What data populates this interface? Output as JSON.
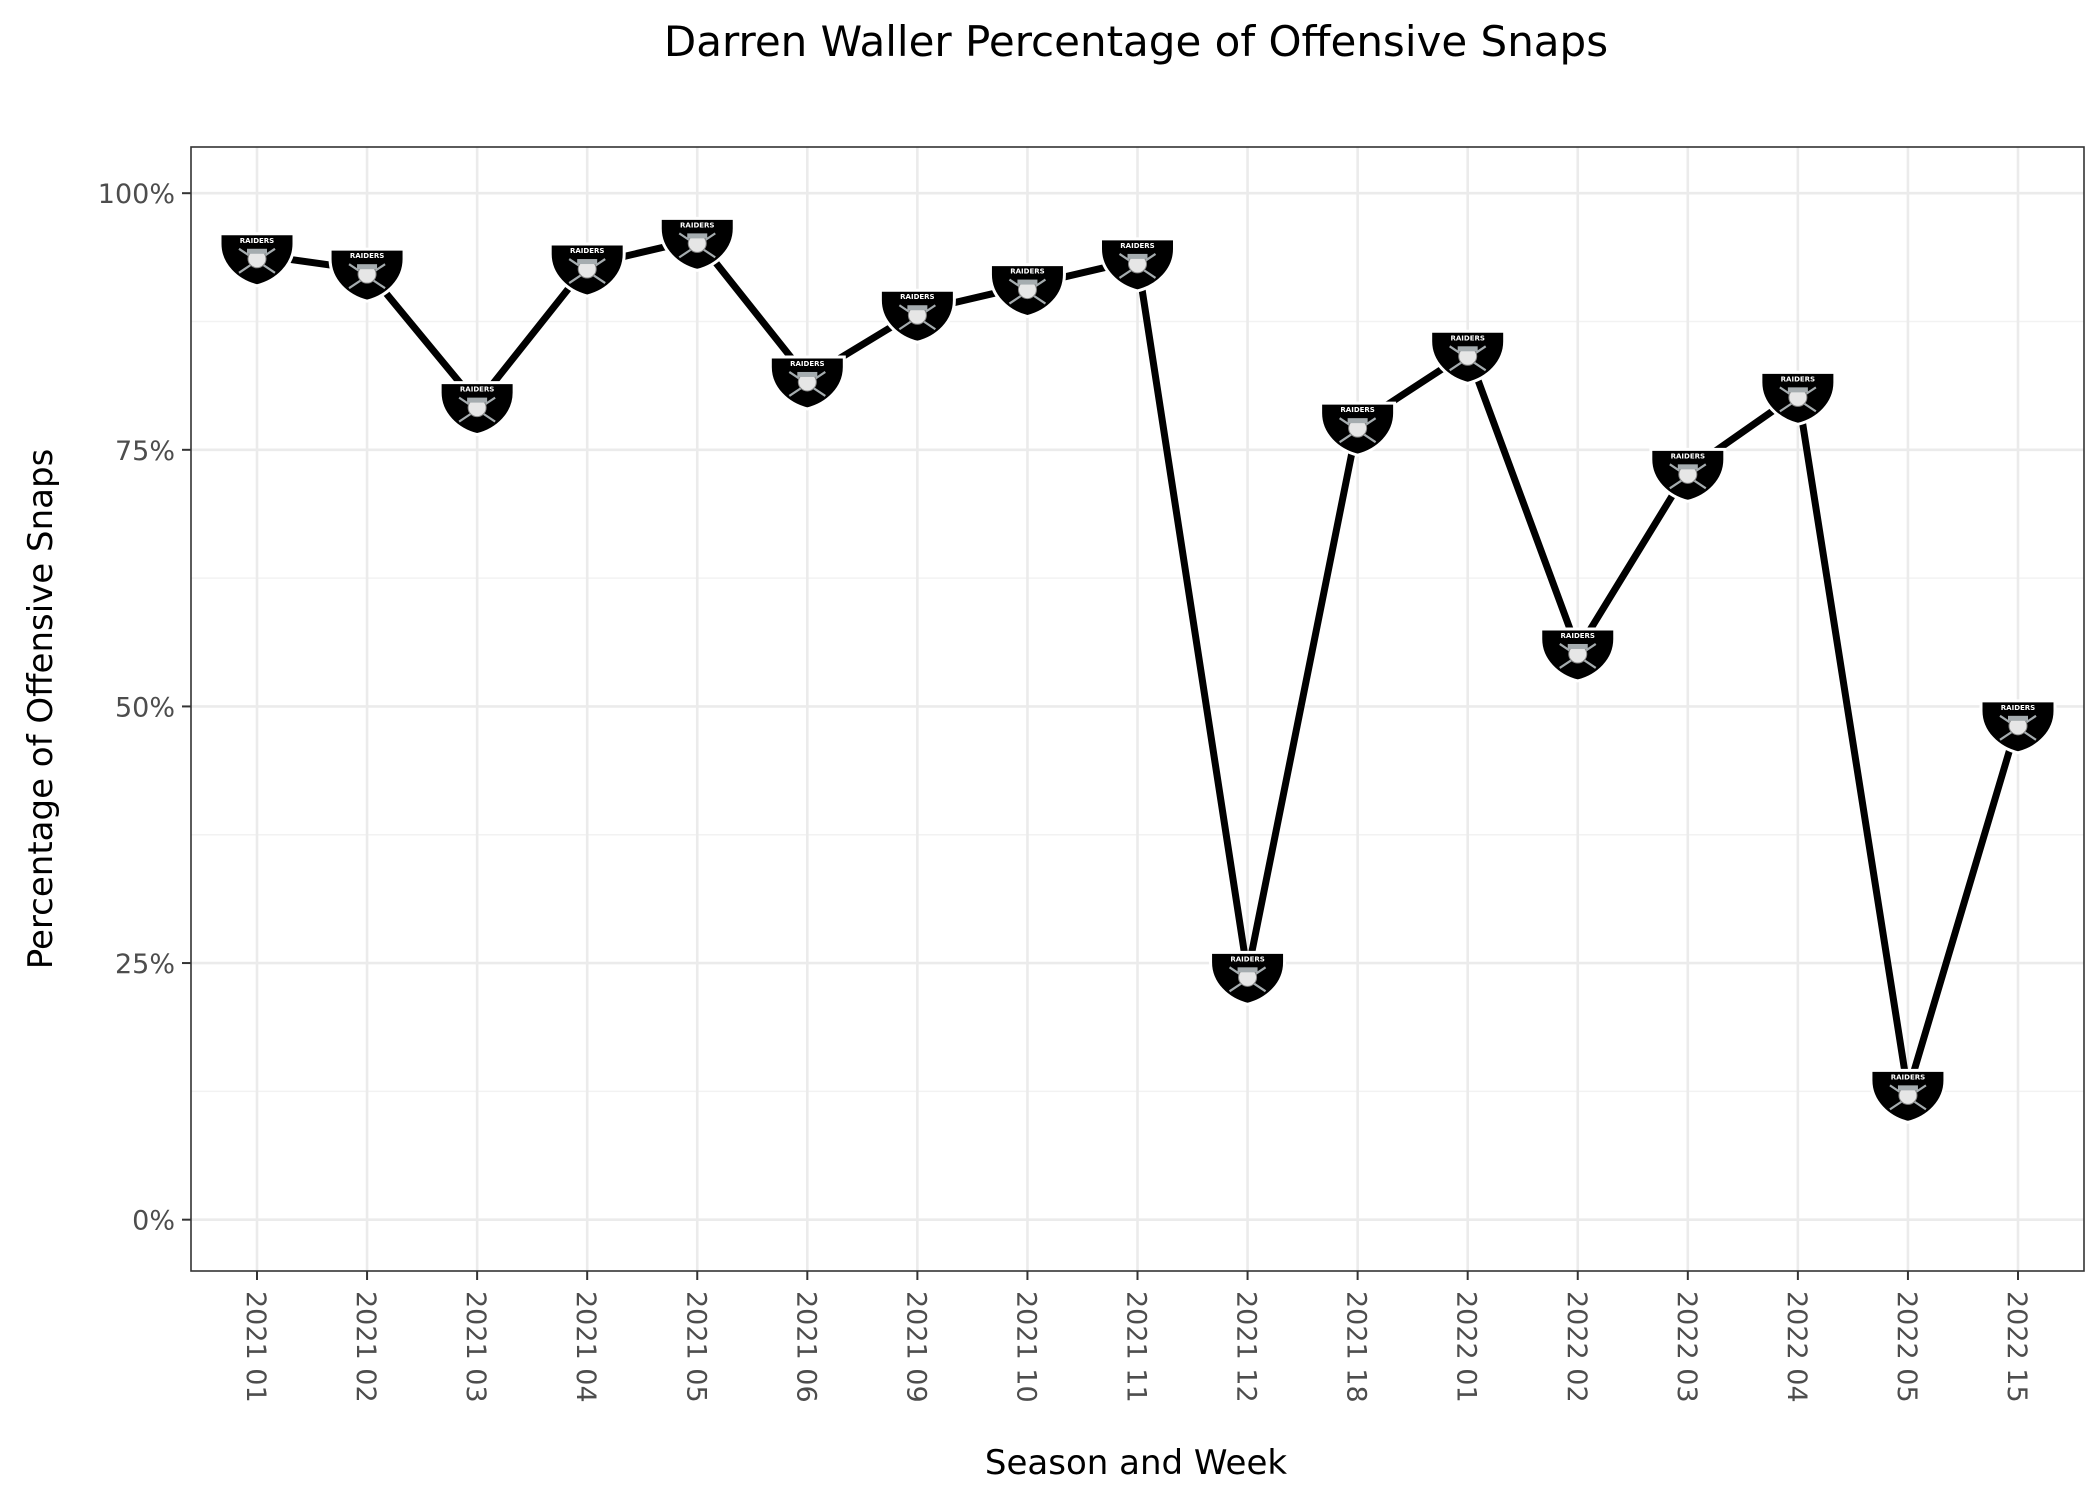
{
  "chart_data": {
    "type": "line",
    "title": "Darren Waller Percentage of Offensive Snaps",
    "xlabel": "Season and Week",
    "ylabel": "Percentage of Offensive Snaps",
    "categories": [
      "2021 01",
      "2021 02",
      "2021 03",
      "2021 04",
      "2021 05",
      "2021 06",
      "2021 09",
      "2021 10",
      "2021 11",
      "2021 12",
      "2021 18",
      "2022 01",
      "2022 02",
      "2022 03",
      "2022 04",
      "2022 05",
      "2022 15"
    ],
    "values": [
      94,
      92.5,
      79.5,
      93,
      95.5,
      82,
      88.5,
      91,
      93.5,
      24,
      77.5,
      84.5,
      55.5,
      73,
      80.5,
      12.5,
      48.5
    ],
    "ylim": [
      -5,
      104.5
    ],
    "yticks": [
      0,
      25,
      50,
      75,
      100
    ],
    "ytick_labels": [
      "0%",
      "25%",
      "50%",
      "75%",
      "100%"
    ],
    "grid": true,
    "marker_icon": "raiders-shield-icon",
    "marker_text": "RAIDERS",
    "colors": {
      "line": "#000000",
      "marker_fill": "#000000",
      "marker_outline": "#ffffff",
      "marker_accent": "#a5acaf"
    }
  }
}
